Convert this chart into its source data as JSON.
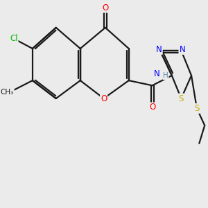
{
  "bg_color": "#ebebeb",
  "bond_color": "#1a1a1a",
  "bond_width": 1.6,
  "atom_colors": {
    "O": "#ff0000",
    "N": "#0000ff",
    "S": "#ccaa00",
    "Cl": "#00bb00",
    "C": "#1a1a1a",
    "H": "#5588aa"
  },
  "font_size": 8.5,
  "font_size_sub": 7.5
}
